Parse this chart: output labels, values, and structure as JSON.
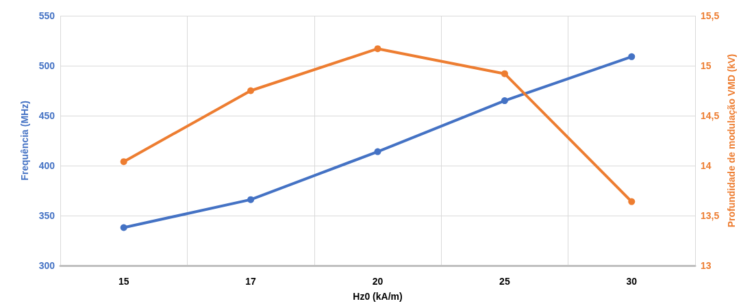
{
  "chart_data": {
    "type": "line",
    "xlabel": "Hz0 (kA/m)",
    "ylabel": "Frequência (MHz)",
    "y2label": "Profundidade de modulação VMD (kV)",
    "categories": [
      "15",
      "17",
      "20",
      "25",
      "30"
    ],
    "series": [
      {
        "color": "#4472c4",
        "values": [
          338,
          366,
          414,
          465,
          509
        ]
      },
      {
        "color": "#ed7d31",
        "axis": "y2",
        "values": [
          14.04,
          14.75,
          15.17,
          14.92,
          13.64
        ]
      }
    ],
    "ylim": [
      300,
      550
    ],
    "yticks": [
      300,
      350,
      400,
      450,
      500,
      550
    ],
    "y2lim": [
      13,
      15.5
    ],
    "y2ticks": [
      {
        "value": 13,
        "label": "13"
      },
      {
        "value": 13.5,
        "label": "13,5"
      },
      {
        "value": 14,
        "label": "14"
      },
      {
        "value": 14.5,
        "label": "14,5"
      },
      {
        "value": 15,
        "label": "15"
      },
      {
        "value": 15.5,
        "label": "15,5"
      }
    ],
    "grid": true,
    "marker": "circle",
    "line_style": "solid"
  }
}
